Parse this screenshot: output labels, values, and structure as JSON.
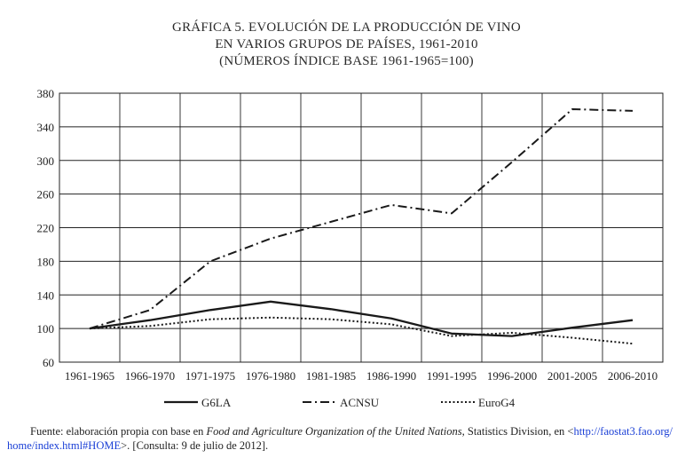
{
  "chart_data": {
    "type": "line",
    "title_lines": [
      "GRÁFICA 5. EVOLUCIÓN DE LA PRODUCCIÓN DE VINO",
      "EN VARIOS GRUPOS DE PAÍSES, 1961-2010",
      "(NÚMEROS ÍNDICE BASE 1961-1965=100)"
    ],
    "categories": [
      "1961-1965",
      "1966-1970",
      "1971-1975",
      "1976-1980",
      "1981-1985",
      "1986-1990",
      "1991-1995",
      "1996-2000",
      "2001-2005",
      "2006-2010"
    ],
    "yticks": [
      "380",
      "340",
      "300",
      "260",
      "220",
      "180",
      "140",
      "100",
      "60"
    ],
    "ylim": [
      60,
      380
    ],
    "grid": true,
    "legend_position": "bottom",
    "series": [
      {
        "name": "G6LA",
        "legend_label": "G6LA",
        "style": "solid",
        "values": [
          100,
          110,
          122,
          132,
          123,
          112,
          94,
          91,
          101,
          110
        ]
      },
      {
        "name": "ACNSU",
        "legend_label": "ACNSU",
        "style": "dashdot",
        "values": [
          100,
          122,
          180,
          207,
          227,
          247,
          237,
          298,
          361,
          359
        ]
      },
      {
        "name": "EuroG4",
        "legend_label": "EuroG4",
        "style": "dotted",
        "values": [
          100,
          103,
          111,
          113,
          111,
          105,
          91,
          95,
          89,
          82
        ]
      }
    ]
  },
  "source": {
    "prefix": "Fuente: elaboración propia con base en ",
    "italic": "Food and Agriculture Organization of the United Nations",
    "middle": ", Statistics Division, en <",
    "link_line1": "http://faostat3.fao.org/",
    "link_line2": "home/index.html#HOME",
    "suffix": ">. [Consulta: 9 de julio de 2012]."
  }
}
